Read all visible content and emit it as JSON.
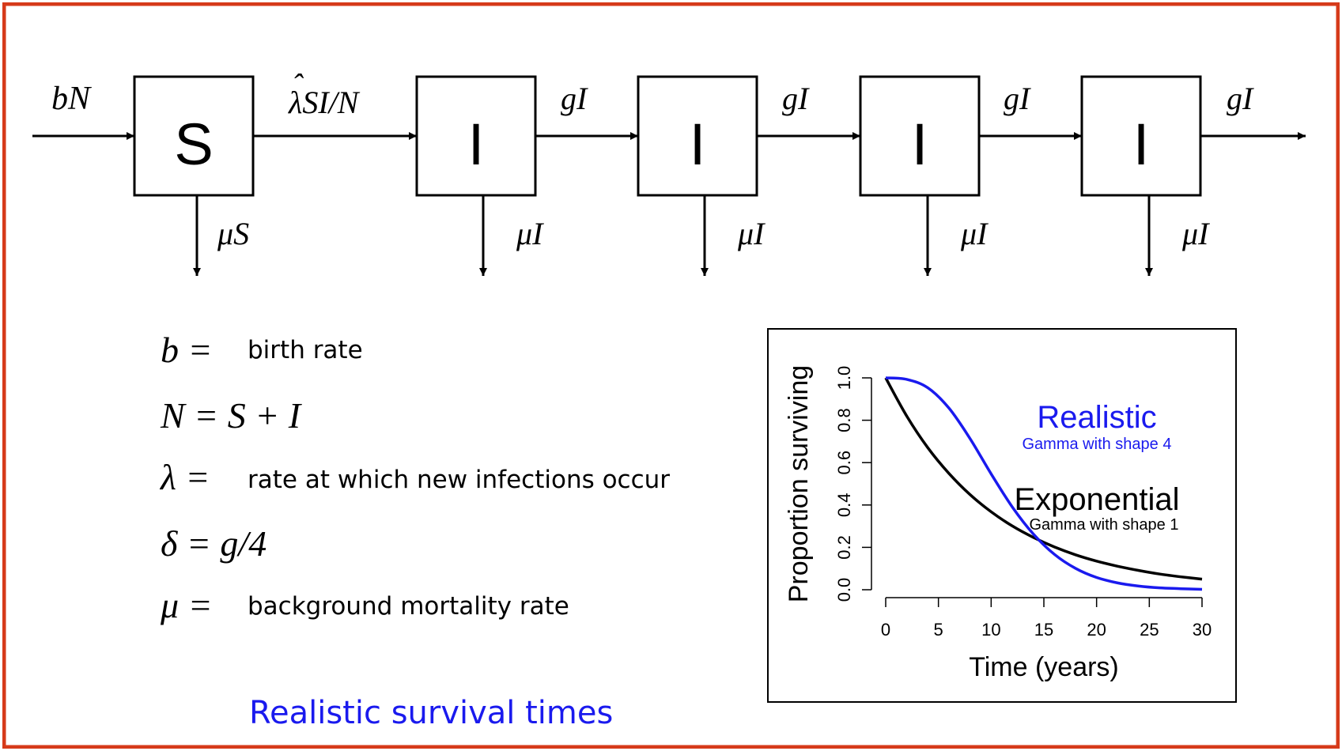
{
  "colors": {
    "frame": "#d63a1a",
    "accent_blue": "#1a1aee",
    "black": "#000000"
  },
  "flow": {
    "input_rate": "bN",
    "infection_hat": "ˆ",
    "infection_rate": "λSI/N",
    "susceptible_label": "S",
    "susceptible_death": "μS",
    "infected_label": "I",
    "progression_rate": "gI",
    "infected_death": "μI"
  },
  "legend": [
    {
      "symbol": "b =",
      "description": "birth rate"
    },
    {
      "symbol": "N = S + I",
      "description": ""
    },
    {
      "symbol": "λ =",
      "description": "rate at which new infections occur"
    },
    {
      "symbol": "δ = g/4",
      "description": ""
    },
    {
      "symbol": "μ =",
      "description": "background mortality rate"
    }
  ],
  "caption": "Realistic survival times",
  "chart_data": {
    "type": "line",
    "title": "",
    "xlabel": "Time (years)",
    "ylabel": "Proportion surviving",
    "xlim": [
      0,
      30
    ],
    "ylim": [
      0,
      1
    ],
    "xticks": [
      0,
      5,
      10,
      15,
      20,
      25,
      30
    ],
    "yticks": [
      "0.0",
      "0.2",
      "0.4",
      "0.6",
      "0.8",
      "1.0"
    ],
    "x": [
      0,
      2,
      4,
      6,
      8,
      10,
      12,
      14,
      16,
      18,
      20,
      22,
      24,
      26,
      28,
      30
    ],
    "series": [
      {
        "name": "Realistic",
        "subtitle": "Gamma with shape 4",
        "color": "#1a1aee",
        "values": [
          1.0,
          0.993,
          0.953,
          0.857,
          0.713,
          0.547,
          0.391,
          0.263,
          0.167,
          0.101,
          0.058,
          0.032,
          0.017,
          0.009,
          0.005,
          0.002
        ]
      },
      {
        "name": "Exponential",
        "subtitle": "Gamma with shape 1",
        "color": "#000000",
        "values": [
          1.0,
          0.819,
          0.67,
          0.549,
          0.449,
          0.368,
          0.301,
          0.247,
          0.202,
          0.165,
          0.135,
          0.111,
          0.091,
          0.074,
          0.061,
          0.05
        ]
      }
    ]
  }
}
